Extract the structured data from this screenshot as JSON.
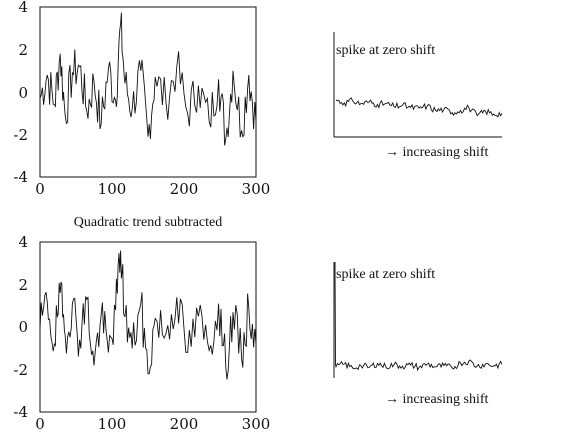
{
  "chart_data": [
    {
      "type": "line",
      "xlim": [
        0,
        300
      ],
      "ylim": [
        -4,
        4
      ],
      "xticks": [
        "0",
        "100",
        "200",
        "300"
      ],
      "yticks": [
        "4",
        "2",
        "0",
        "-2",
        "-4"
      ],
      "series": [
        {
          "points": [
            [
              0,
              -0.3
            ],
            [
              10,
              0.8
            ],
            [
              20,
              -0.6
            ],
            [
              28,
              1.8
            ],
            [
              35,
              -1.1
            ],
            [
              45,
              0.9
            ],
            [
              55,
              1.2
            ],
            [
              65,
              -0.9
            ],
            [
              75,
              0.5
            ],
            [
              85,
              -1.5
            ],
            [
              95,
              1.1
            ],
            [
              105,
              -0.4
            ],
            [
              112,
              3.2
            ],
            [
              118,
              0.4
            ],
            [
              128,
              -0.8
            ],
            [
              140,
              1.0
            ],
            [
              150,
              -2.1
            ],
            [
              160,
              0.7
            ],
            [
              175,
              -0.5
            ],
            [
              190,
              1.2
            ],
            [
              205,
              -1.0
            ],
            [
              220,
              0.3
            ],
            [
              235,
              -1.4
            ],
            [
              248,
              0.6
            ],
            [
              258,
              -2.2
            ],
            [
              268,
              1.0
            ],
            [
              280,
              -1.8
            ],
            [
              290,
              0.8
            ],
            [
              300,
              -1.4
            ]
          ]
        }
      ],
      "title": ""
    },
    {
      "type": "line",
      "annotation_top": "spike at zero shift",
      "annotation_bottom": "→ increasing shift",
      "series": [
        {
          "points": [
            [
              0,
              1.0
            ],
            [
              5,
              0.92
            ],
            [
              10,
              0.98
            ],
            [
              15,
              0.9
            ],
            [
              20,
              0.95
            ],
            [
              25,
              0.88
            ],
            [
              30,
              0.9
            ],
            [
              35,
              0.82
            ],
            [
              40,
              0.86
            ],
            [
              45,
              0.8
            ],
            [
              50,
              0.78
            ],
            [
              55,
              0.84
            ],
            [
              60,
              0.72
            ],
            [
              65,
              0.75
            ],
            [
              70,
              0.66
            ],
            [
              75,
              0.72
            ],
            [
              80,
              0.8
            ],
            [
              85,
              0.58
            ],
            [
              90,
              0.7
            ],
            [
              95,
              0.62
            ],
            [
              100,
              0.64
            ]
          ]
        }
      ]
    },
    {
      "type": "line",
      "title": "Quadratic trend subtracted",
      "xlim": [
        0,
        300
      ],
      "ylim": [
        -4,
        4
      ],
      "xticks": [
        "0",
        "100",
        "200",
        "300"
      ],
      "yticks": [
        "4",
        "2",
        "0",
        "-2",
        "-4"
      ],
      "series": [
        {
          "points": [
            [
              0,
              -0.1
            ],
            [
              10,
              1.2
            ],
            [
              20,
              -0.8
            ],
            [
              28,
              1.6
            ],
            [
              35,
              -0.4
            ],
            [
              45,
              1.1
            ],
            [
              55,
              -0.6
            ],
            [
              65,
              1.3
            ],
            [
              75,
              -1.8
            ],
            [
              85,
              0.6
            ],
            [
              95,
              -1.2
            ],
            [
              105,
              0.8
            ],
            [
              112,
              3.6
            ],
            [
              118,
              0.5
            ],
            [
              128,
              -1.0
            ],
            [
              140,
              1.1
            ],
            [
              150,
              -2.2
            ],
            [
              160,
              0.4
            ],
            [
              175,
              -0.3
            ],
            [
              190,
              1.4
            ],
            [
              205,
              -1.2
            ],
            [
              220,
              0.5
            ],
            [
              235,
              -1.1
            ],
            [
              248,
              1.1
            ],
            [
              258,
              -1.9
            ],
            [
              268,
              0.7
            ],
            [
              280,
              -1.5
            ],
            [
              290,
              0.9
            ],
            [
              300,
              -0.8
            ]
          ]
        }
      ]
    },
    {
      "type": "line",
      "annotation_top": "spike at zero shift",
      "annotation_bottom": "→ increasing shift",
      "series": [
        {
          "points": [
            [
              0,
              0.2
            ],
            [
              5,
              0.25
            ],
            [
              10,
              0.18
            ],
            [
              15,
              0.22
            ],
            [
              20,
              0.19
            ],
            [
              25,
              0.26
            ],
            [
              30,
              0.2
            ],
            [
              35,
              0.24
            ],
            [
              40,
              0.21
            ],
            [
              45,
              0.23
            ],
            [
              50,
              0.19
            ],
            [
              55,
              0.25
            ],
            [
              60,
              0.2
            ],
            [
              65,
              0.22
            ],
            [
              70,
              0.18
            ],
            [
              75,
              0.27
            ],
            [
              80,
              0.3
            ],
            [
              85,
              0.21
            ],
            [
              90,
              0.25
            ],
            [
              95,
              0.22
            ],
            [
              100,
              0.24
            ]
          ]
        }
      ]
    }
  ]
}
